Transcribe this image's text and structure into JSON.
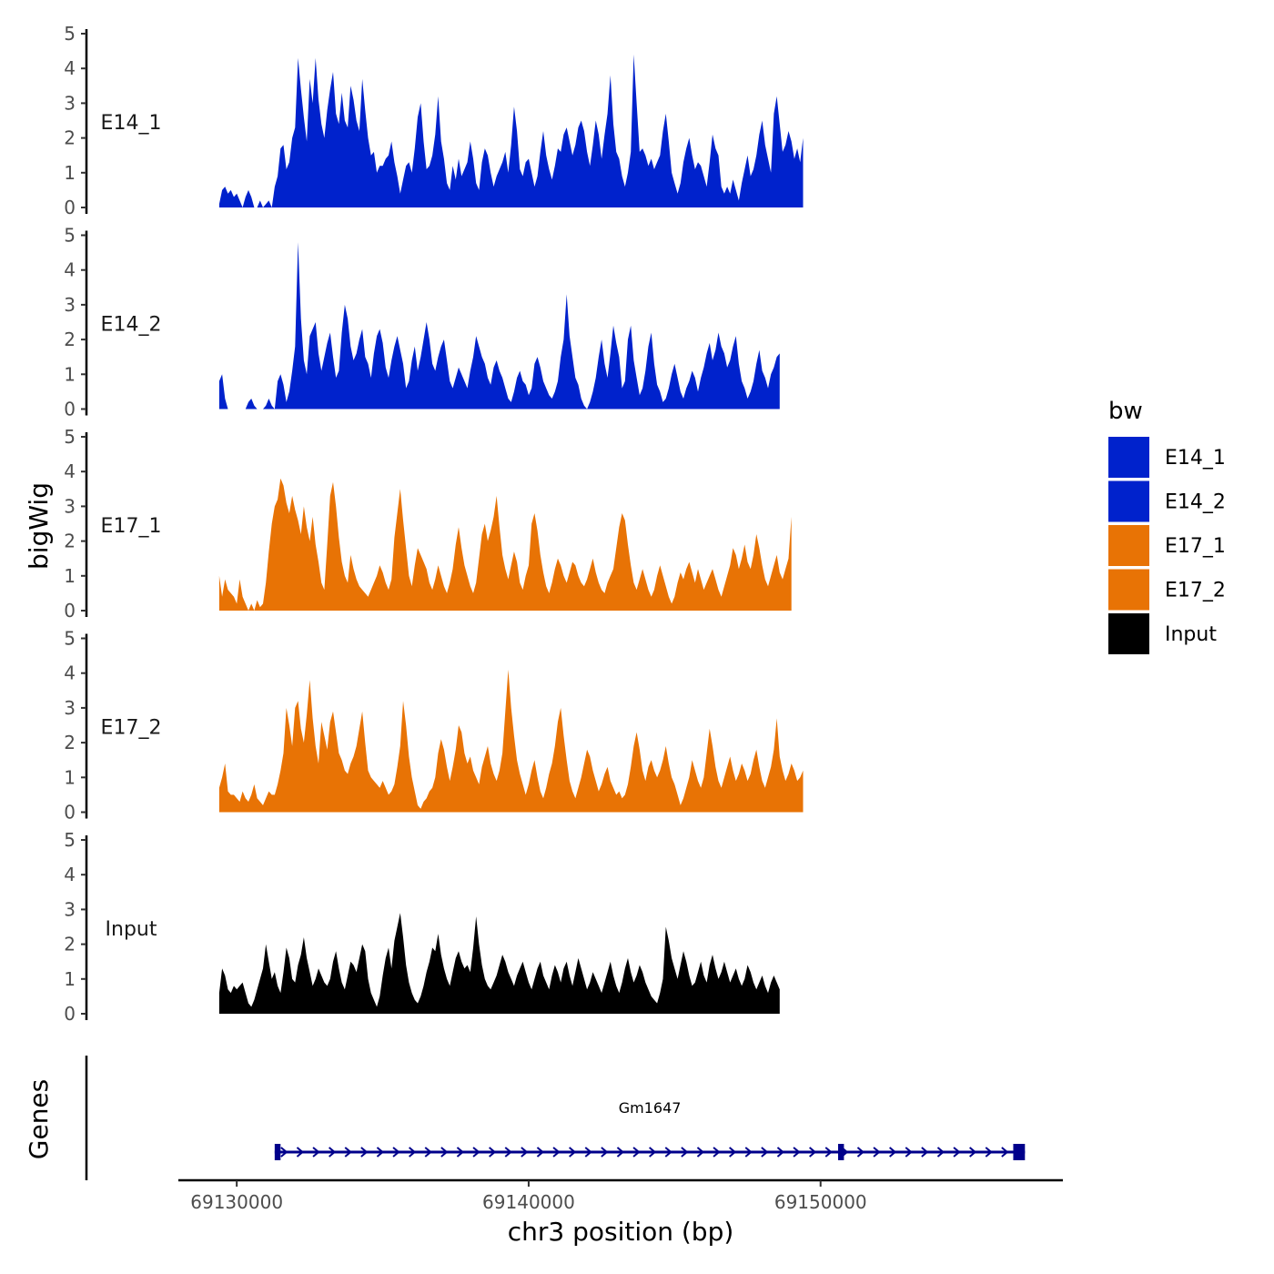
{
  "chart_data": {
    "type": "area",
    "xlabel": "chr3 position (bp)",
    "ylabel": "bigWig",
    "ylim": [
      0,
      5
    ],
    "y_ticks": [
      0,
      1,
      2,
      3,
      4,
      5
    ],
    "xlim": [
      69128000,
      69158300
    ],
    "x_ticks": [
      69130000,
      69140000,
      69150000
    ],
    "x_tick_labels": [
      "69130000",
      "69140000",
      "69150000"
    ],
    "legend": {
      "title": "bw",
      "position": "right",
      "entries": [
        {
          "label": "E14_1",
          "color": "#0022CC"
        },
        {
          "label": "E14_2",
          "color": "#0022CC"
        },
        {
          "label": "E17_1",
          "color": "#E87305"
        },
        {
          "label": "E17_2",
          "color": "#E87305"
        },
        {
          "label": "Input",
          "color": "#000000"
        }
      ]
    },
    "series": [
      {
        "name": "E14_1",
        "color": "#0022CC",
        "x_start": 69129400,
        "x_step": 100,
        "values": [
          0.1,
          0.5,
          0.6,
          0.4,
          0.5,
          0.3,
          0.4,
          0.2,
          0,
          0.3,
          0.5,
          0.3,
          0,
          0,
          0.2,
          0,
          0.1,
          0.2,
          0,
          0.6,
          0.9,
          1.7,
          1.8,
          1.1,
          1.3,
          2.0,
          2.3,
          4.3,
          3.4,
          2.6,
          1.9,
          3.7,
          3.0,
          4.3,
          3.1,
          2.4,
          2.0,
          2.8,
          3.4,
          3.9,
          2.7,
          2.4,
          3.3,
          2.5,
          2.3,
          3.5,
          3.1,
          2.5,
          2.2,
          3.7,
          2.8,
          2.0,
          1.5,
          1.6,
          1.0,
          1.2,
          1.2,
          1.4,
          1.5,
          1.9,
          1.3,
          0.9,
          0.4,
          0.8,
          1.2,
          1.3,
          1.0,
          1.7,
          2.6,
          3.0,
          1.9,
          1.1,
          1.2,
          1.5,
          2.1,
          3.2,
          1.9,
          1.4,
          0.7,
          0.5,
          1.2,
          0.8,
          1.4,
          0.9,
          1.1,
          1.3,
          1.9,
          1.4,
          0.7,
          0.5,
          1.3,
          1.7,
          1.5,
          1.0,
          0.6,
          0.9,
          1.1,
          1.3,
          1.6,
          1.0,
          1.8,
          2.9,
          2.2,
          1.1,
          0.9,
          1.3,
          1.4,
          1.0,
          0.6,
          0.9,
          1.6,
          2.2,
          1.5,
          1.1,
          0.8,
          1.2,
          1.7,
          1.6,
          2.1,
          2.3,
          1.9,
          1.5,
          1.8,
          2.3,
          2.5,
          2.2,
          1.6,
          1.2,
          1.8,
          2.5,
          2.1,
          1.4,
          2.1,
          2.7,
          3.8,
          2.4,
          1.6,
          1.4,
          0.9,
          0.6,
          1.0,
          1.6,
          4.4,
          3.0,
          1.6,
          1.7,
          1.5,
          1.2,
          1.4,
          1.1,
          1.3,
          1.5,
          2.2,
          2.7,
          1.9,
          1.0,
          0.7,
          0.4,
          0.7,
          1.3,
          1.7,
          2.0,
          1.5,
          1.1,
          1.3,
          1.2,
          0.9,
          0.6,
          1.3,
          2.1,
          1.7,
          1.5,
          0.6,
          0.4,
          0.6,
          0.4,
          0.8,
          0.5,
          0.2,
          0.7,
          1.1,
          1.5,
          0.9,
          1.1,
          1.5,
          2.1,
          2.5,
          1.8,
          1.4,
          1.0,
          2.7,
          3.2,
          2.4,
          1.6,
          1.8,
          2.2,
          1.9,
          1.4,
          1.7,
          1.3,
          2.0
        ]
      },
      {
        "name": "E14_2",
        "color": "#0022CC",
        "x_start": 69129400,
        "x_step": 100,
        "values": [
          0.8,
          1.0,
          0.3,
          0,
          0,
          0,
          0,
          0,
          0,
          0,
          0.2,
          0.3,
          0.1,
          0,
          0,
          0,
          0.1,
          0.3,
          0.1,
          0,
          0.8,
          1.0,
          0.7,
          0.2,
          0.5,
          1.1,
          1.8,
          4.8,
          2.6,
          1.4,
          1.0,
          2.1,
          2.3,
          2.5,
          1.6,
          1.1,
          1.5,
          1.9,
          2.2,
          1.5,
          0.9,
          1.1,
          2.2,
          3.0,
          2.6,
          1.8,
          1.4,
          1.6,
          2.0,
          2.3,
          1.5,
          1.3,
          0.9,
          1.6,
          2.1,
          2.3,
          1.9,
          1.2,
          0.9,
          1.4,
          1.8,
          2.1,
          1.7,
          1.3,
          0.6,
          0.8,
          1.4,
          1.8,
          1.1,
          1.5,
          2.0,
          2.5,
          2.0,
          1.3,
          1.1,
          1.5,
          1.8,
          2.0,
          1.4,
          0.8,
          0.6,
          0.9,
          1.2,
          1.0,
          0.8,
          0.6,
          1.1,
          1.5,
          2.1,
          1.8,
          1.5,
          1.3,
          0.9,
          0.7,
          1.2,
          1.4,
          1.1,
          0.9,
          0.6,
          0.3,
          0.2,
          0.5,
          0.9,
          1.1,
          0.8,
          0.7,
          0.4,
          0.6,
          1.3,
          1.5,
          1.2,
          0.8,
          0.6,
          0.4,
          0.3,
          0.5,
          0.8,
          1.5,
          2.0,
          3.3,
          2.1,
          1.5,
          0.9,
          0.7,
          0.3,
          0.1,
          0,
          0.2,
          0.5,
          0.9,
          1.5,
          2.0,
          1.3,
          0.9,
          1.6,
          2.4,
          1.9,
          1.5,
          0.6,
          0.8,
          2.0,
          2.4,
          1.4,
          0.9,
          0.4,
          0.6,
          1.1,
          1.8,
          2.2,
          1.3,
          0.7,
          0.5,
          0.2,
          0.3,
          0.6,
          1.0,
          1.3,
          0.9,
          0.5,
          0.3,
          0.6,
          0.8,
          1.1,
          0.9,
          0.5,
          0.9,
          1.2,
          1.6,
          1.9,
          1.4,
          1.7,
          2.2,
          1.8,
          1.6,
          1.2,
          1.4,
          1.8,
          2.1,
          1.3,
          0.8,
          0.6,
          0.3,
          0.5,
          0.8,
          1.3,
          1.7,
          1.1,
          0.9,
          0.6,
          1.0,
          1.2,
          1.5,
          1.6
        ]
      },
      {
        "name": "E17_1",
        "color": "#E87305",
        "x_start": 69129400,
        "x_step": 100,
        "values": [
          1.0,
          0.4,
          0.9,
          0.6,
          0.5,
          0.4,
          0.2,
          0.9,
          0.4,
          0.2,
          0,
          0.2,
          0,
          0.3,
          0.1,
          0.2,
          0.8,
          1.7,
          2.5,
          3.0,
          3.2,
          3.8,
          3.6,
          3.1,
          2.8,
          3.3,
          2.9,
          2.6,
          2.2,
          3.0,
          2.4,
          2.0,
          2.7,
          1.9,
          1.4,
          0.8,
          0.6,
          1.9,
          3.3,
          3.7,
          3.0,
          2.1,
          1.4,
          1.0,
          0.8,
          1.6,
          1.2,
          0.9,
          0.7,
          0.6,
          0.5,
          0.4,
          0.6,
          0.8,
          1.0,
          1.3,
          1.1,
          0.8,
          0.6,
          0.9,
          2.1,
          2.8,
          3.5,
          2.6,
          1.8,
          1.0,
          0.7,
          1.3,
          1.8,
          1.6,
          1.4,
          1.2,
          0.8,
          0.6,
          0.9,
          1.3,
          1.0,
          0.7,
          0.5,
          0.8,
          1.2,
          1.9,
          2.4,
          1.8,
          1.3,
          1.0,
          0.7,
          0.5,
          0.8,
          1.5,
          2.2,
          2.5,
          2.0,
          2.3,
          2.7,
          3.3,
          2.4,
          1.6,
          1.2,
          0.9,
          1.3,
          1.7,
          1.4,
          0.8,
          0.6,
          1.0,
          1.3,
          2.5,
          2.8,
          2.3,
          1.6,
          1.1,
          0.7,
          0.5,
          0.8,
          1.2,
          1.5,
          1.3,
          1.0,
          0.8,
          1.1,
          1.4,
          1.3,
          1.0,
          0.8,
          0.7,
          0.9,
          1.2,
          1.5,
          1.1,
          0.8,
          0.6,
          0.5,
          0.8,
          1.0,
          1.2,
          1.8,
          2.4,
          2.8,
          2.6,
          1.9,
          1.3,
          0.8,
          0.6,
          0.9,
          1.2,
          0.9,
          0.6,
          0.4,
          0.6,
          1.0,
          1.3,
          1.0,
          0.7,
          0.4,
          0.2,
          0.4,
          0.8,
          1.1,
          0.9,
          1.2,
          1.4,
          1.1,
          0.8,
          1.2,
          0.9,
          0.6,
          0.8,
          1.0,
          1.2,
          0.9,
          0.6,
          0.4,
          0.7,
          1.0,
          1.3,
          1.8,
          1.6,
          1.2,
          1.5,
          1.9,
          1.4,
          1.2,
          1.6,
          2.2,
          1.8,
          1.3,
          0.9,
          0.7,
          1.0,
          1.3,
          1.6,
          1.1,
          0.9,
          1.2,
          1.5,
          2.7
        ]
      },
      {
        "name": "E17_2",
        "color": "#E87305",
        "x_start": 69129400,
        "x_step": 100,
        "values": [
          0.7,
          1.0,
          1.4,
          0.6,
          0.5,
          0.5,
          0.4,
          0.3,
          0.6,
          0.4,
          0.3,
          0.5,
          0.8,
          0.4,
          0.3,
          0.2,
          0.4,
          0.6,
          0.5,
          0.5,
          0.8,
          1.2,
          1.7,
          3.0,
          2.5,
          1.9,
          3.0,
          3.2,
          2.4,
          2.0,
          2.8,
          3.8,
          2.7,
          1.9,
          1.4,
          2.6,
          2.2,
          1.8,
          2.6,
          2.9,
          2.3,
          1.7,
          1.5,
          1.2,
          1.1,
          1.4,
          1.6,
          1.9,
          2.4,
          2.9,
          2.0,
          1.2,
          1.0,
          0.9,
          0.8,
          0.7,
          0.9,
          0.7,
          0.5,
          0.6,
          0.8,
          1.3,
          1.9,
          3.2,
          2.5,
          1.6,
          1.0,
          0.6,
          0.2,
          0.1,
          0.3,
          0.4,
          0.6,
          0.7,
          1.0,
          1.7,
          2.1,
          1.8,
          1.3,
          0.9,
          1.3,
          1.8,
          2.5,
          2.3,
          1.7,
          1.4,
          1.6,
          1.2,
          1.0,
          0.8,
          1.3,
          1.6,
          1.9,
          1.4,
          1.1,
          0.9,
          1.2,
          1.7,
          2.9,
          4.1,
          3.0,
          2.2,
          1.5,
          1.1,
          0.8,
          0.5,
          0.8,
          1.2,
          1.5,
          1.0,
          0.6,
          0.4,
          0.7,
          1.1,
          1.4,
          1.9,
          2.6,
          3.0,
          2.2,
          1.5,
          0.9,
          0.6,
          0.4,
          0.7,
          1.0,
          1.4,
          1.8,
          1.6,
          1.2,
          0.9,
          0.6,
          0.8,
          1.1,
          1.3,
          0.9,
          0.7,
          0.5,
          0.6,
          0.4,
          0.5,
          0.8,
          1.3,
          1.9,
          2.3,
          1.8,
          1.2,
          0.9,
          1.3,
          1.5,
          1.2,
          1.0,
          1.2,
          1.5,
          1.9,
          1.4,
          1.0,
          0.8,
          0.5,
          0.2,
          0.4,
          0.7,
          1.0,
          1.5,
          1.2,
          0.9,
          0.7,
          1.0,
          1.7,
          2.4,
          1.9,
          1.3,
          0.9,
          0.7,
          1.0,
          1.3,
          1.6,
          1.2,
          0.9,
          1.1,
          1.4,
          1.2,
          0.9,
          1.1,
          1.5,
          1.8,
          1.3,
          0.9,
          0.7,
          1.0,
          1.3,
          1.8,
          2.7,
          1.6,
          1.2,
          0.9,
          1.1,
          1.4,
          1.2,
          0.9,
          1.0,
          1.2
        ]
      },
      {
        "name": "Input",
        "color": "#000000",
        "x_start": 69129400,
        "x_step": 100,
        "values": [
          0.6,
          1.3,
          1.1,
          0.7,
          0.6,
          0.8,
          0.7,
          0.8,
          0.9,
          0.6,
          0.3,
          0.2,
          0.4,
          0.7,
          1.0,
          1.3,
          2.0,
          1.5,
          1.0,
          1.2,
          0.8,
          0.6,
          1.2,
          1.9,
          1.6,
          1.0,
          0.9,
          1.4,
          1.7,
          2.2,
          1.6,
          1.2,
          0.8,
          1.0,
          1.3,
          1.1,
          0.9,
          0.8,
          1.0,
          1.5,
          1.8,
          1.3,
          0.9,
          0.7,
          1.1,
          1.5,
          1.4,
          1.2,
          1.6,
          2.0,
          1.8,
          1.0,
          0.6,
          0.4,
          0.2,
          0.5,
          1.1,
          1.6,
          1.9,
          1.3,
          2.1,
          2.5,
          2.9,
          2.2,
          1.4,
          0.9,
          0.6,
          0.4,
          0.3,
          0.5,
          0.8,
          1.2,
          1.5,
          1.9,
          1.8,
          2.3,
          1.7,
          1.3,
          1.0,
          0.8,
          1.2,
          1.6,
          1.8,
          1.5,
          1.3,
          1.4,
          1.2,
          1.9,
          2.8,
          2.0,
          1.4,
          1.0,
          0.8,
          0.7,
          0.9,
          1.1,
          1.4,
          1.7,
          1.5,
          1.2,
          1.0,
          0.8,
          1.1,
          1.3,
          1.5,
          1.2,
          0.9,
          0.7,
          1.0,
          1.3,
          1.5,
          1.1,
          0.9,
          0.7,
          1.1,
          1.4,
          1.2,
          0.9,
          1.3,
          1.5,
          1.1,
          0.8,
          1.2,
          1.6,
          1.3,
          1.0,
          0.7,
          0.9,
          1.2,
          1.0,
          0.8,
          0.6,
          0.9,
          1.2,
          1.5,
          1.1,
          0.8,
          0.6,
          0.9,
          1.3,
          1.6,
          1.2,
          0.9,
          1.1,
          1.4,
          1.2,
          0.9,
          0.7,
          0.5,
          0.4,
          0.3,
          0.6,
          1.0,
          2.5,
          2.1,
          1.6,
          1.3,
          1.0,
          1.4,
          1.8,
          1.5,
          1.1,
          0.8,
          0.9,
          1.2,
          1.5,
          1.1,
          0.9,
          1.4,
          1.7,
          1.3,
          1.0,
          1.2,
          1.5,
          1.2,
          0.9,
          1.1,
          1.3,
          1.0,
          0.8,
          1.0,
          1.4,
          1.2,
          0.9,
          0.7,
          0.9,
          1.1,
          0.8,
          0.6,
          0.9,
          1.1,
          0.9,
          0.7
        ]
      }
    ],
    "genes_track": {
      "label": "Genes",
      "genes": [
        {
          "name": "Gm1647",
          "strand": "+",
          "start": 69131300,
          "end": 69157000,
          "exons": [
            {
              "start": 69131300,
              "end": 69131500
            },
            {
              "start": 69150600,
              "end": 69150800
            },
            {
              "start": 69156600,
              "end": 69157000
            }
          ]
        }
      ]
    }
  }
}
